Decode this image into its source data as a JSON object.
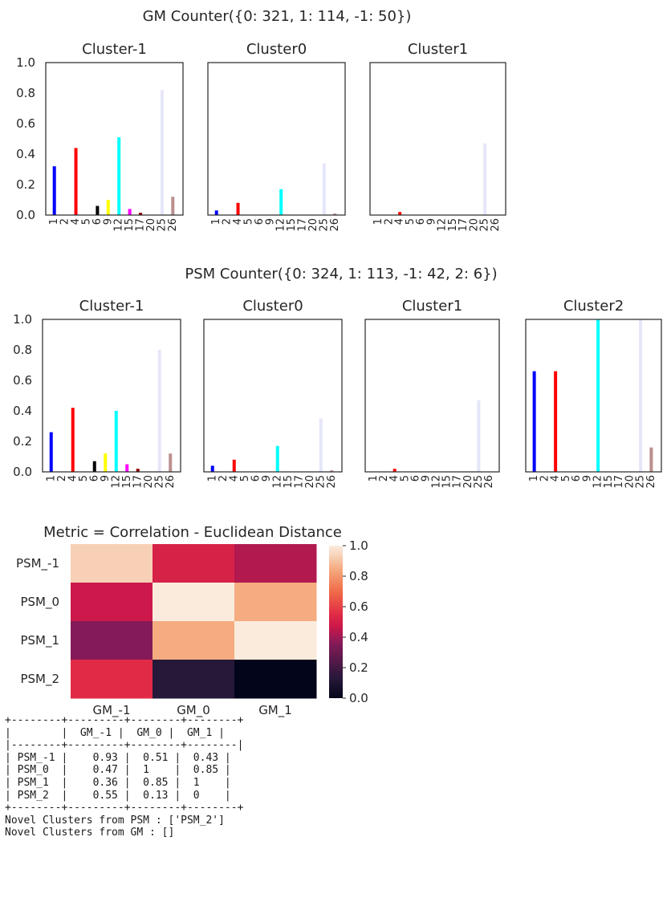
{
  "chart_data": [
    {
      "type": "bar",
      "title": "GM Counter({0: 321, 1: 114, -1: 50})",
      "categories": [
        "1",
        "2",
        "4",
        "5",
        "6",
        "9",
        "12",
        "15",
        "17",
        "20",
        "25",
        "26"
      ],
      "colors": [
        "#0000ff",
        "#008000",
        "#ff0000",
        "#00bfbf",
        "#000000",
        "#ffff00",
        "#00ffff",
        "#ff00ff",
        "#8b0000",
        "#ffc0cb",
        "#e6e6fa",
        "#bc8f8f"
      ],
      "ylim": [
        0,
        1.0
      ],
      "yticks": [
        "0.0",
        "0.2",
        "0.4",
        "0.6",
        "0.8",
        "1.0"
      ],
      "panels": [
        {
          "title": "Cluster-1",
          "values": [
            0.32,
            0,
            0.44,
            0,
            0.06,
            0.1,
            0.51,
            0.04,
            0.015,
            0,
            0.82,
            0.12
          ]
        },
        {
          "title": "Cluster0",
          "values": [
            0.03,
            0,
            0.08,
            0,
            0,
            0,
            0.17,
            0,
            0,
            0,
            0.34,
            0.01
          ]
        },
        {
          "title": "Cluster1",
          "values": [
            0,
            0,
            0.02,
            0,
            0,
            0,
            0,
            0,
            0,
            0,
            0.47,
            0
          ]
        }
      ]
    },
    {
      "type": "bar",
      "title": "PSM Counter({0: 324, 1: 113, -1: 42, 2: 6})",
      "categories": [
        "1",
        "2",
        "4",
        "5",
        "6",
        "9",
        "12",
        "15",
        "17",
        "20",
        "25",
        "26"
      ],
      "colors": [
        "#0000ff",
        "#008000",
        "#ff0000",
        "#00bfbf",
        "#000000",
        "#ffff00",
        "#00ffff",
        "#ff00ff",
        "#8b0000",
        "#ffc0cb",
        "#e6e6fa",
        "#bc8f8f"
      ],
      "ylim": [
        0,
        1.0
      ],
      "yticks": [
        "0.0",
        "0.2",
        "0.4",
        "0.6",
        "0.8",
        "1.0"
      ],
      "panels": [
        {
          "title": "Cluster-1",
          "values": [
            0.26,
            0,
            0.42,
            0,
            0.07,
            0.12,
            0.4,
            0.05,
            0.02,
            0,
            0.8,
            0.12
          ]
        },
        {
          "title": "Cluster0",
          "values": [
            0.04,
            0,
            0.08,
            0,
            0,
            0,
            0.17,
            0,
            0,
            0,
            0.35,
            0.01
          ]
        },
        {
          "title": "Cluster1",
          "values": [
            0,
            0,
            0.02,
            0,
            0,
            0,
            0,
            0,
            0,
            0,
            0.47,
            0
          ]
        },
        {
          "title": "Cluster2",
          "values": [
            0.66,
            0,
            0.66,
            0,
            0,
            0,
            1.0,
            0,
            0,
            0,
            1.0,
            0.16
          ]
        }
      ]
    },
    {
      "type": "heatmap",
      "title": "Metric = Correlation - Euclidean Distance",
      "row_labels": [
        "PSM_-1",
        "PSM_0",
        "PSM_1",
        "PSM_2"
      ],
      "col_labels": [
        "GM_-1",
        "GM_0",
        "GM_1"
      ],
      "values": [
        [
          0.93,
          0.51,
          0.43
        ],
        [
          0.47,
          1,
          0.85
        ],
        [
          0.36,
          0.85,
          1
        ],
        [
          0.55,
          0.13,
          0
        ]
      ],
      "colorbar_ticks": [
        "0.0",
        "0.2",
        "0.4",
        "0.6",
        "0.8",
        "1.0"
      ],
      "vmin": 0,
      "vmax": 1
    }
  ],
  "table": {
    "lines": [
      "+--------+---------+--------+--------+",
      "|        |  GM_-1 |  GM_0 |  GM_1 |",
      "|--------+---------+--------+--------|",
      "| PSM_-1 |    0.93 |  0.51 |  0.43 |",
      "| PSM_0  |    0.47 |  1    |  0.85 |",
      "| PSM_1  |    0.36 |  0.85 |  1    |",
      "| PSM_2  |    0.55 |  0.13 |  0    |",
      "+--------+---------+--------+--------+",
      "Novel Clusters from PSM : ['PSM_2']",
      "Novel Clusters from GM : []"
    ]
  }
}
